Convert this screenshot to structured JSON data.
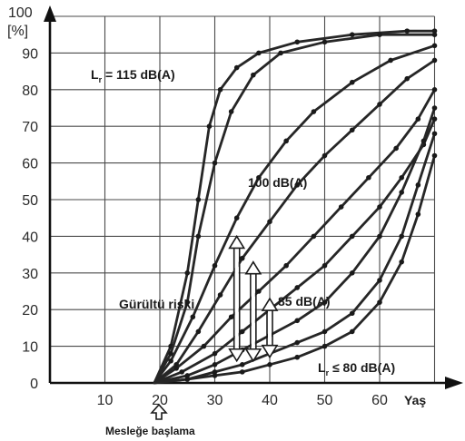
{
  "chart_data": {
    "type": "line",
    "ylabel_top": "100",
    "ylabel_unit": "[%]",
    "xlabel": "Yaş",
    "xlim": [
      0,
      70
    ],
    "ylim": [
      0,
      100
    ],
    "xticks": [
      "10",
      "20",
      "30",
      "40",
      "50",
      "60"
    ],
    "yticks": [
      "0",
      "10",
      "20",
      "30",
      "40",
      "50",
      "60",
      "70",
      "80",
      "90"
    ],
    "grid": true,
    "start_age": 19,
    "start_label": "Mesleğe başlama",
    "annotations": {
      "l115_prefix": "L",
      "l115_sub": "r",
      "l115_text": " = 115 dB(A)",
      "l100": "100 dB(A)",
      "l85": "85 dB(A)",
      "l80_prefix": "L",
      "l80_sub": "r",
      "l80_text": " ≤ 80 dB(A)",
      "risk": "Gürültü riski"
    },
    "series": [
      {
        "values": [
          [
            19,
            0
          ],
          [
            22,
            10
          ],
          [
            25,
            30
          ],
          [
            27,
            50
          ],
          [
            29,
            70
          ],
          [
            31,
            80
          ],
          [
            34,
            86
          ],
          [
            38,
            90
          ],
          [
            45,
            93
          ],
          [
            55,
            95
          ],
          [
            65,
            96
          ],
          [
            70,
            96
          ]
        ]
      },
      {
        "values": [
          [
            19,
            0
          ],
          [
            22,
            8
          ],
          [
            25,
            22
          ],
          [
            27,
            40
          ],
          [
            30,
            60
          ],
          [
            33,
            74
          ],
          [
            37,
            84
          ],
          [
            42,
            90
          ],
          [
            50,
            93
          ],
          [
            60,
            95
          ],
          [
            70,
            95
          ]
        ]
      },
      {
        "values": [
          [
            19,
            0
          ],
          [
            22,
            6
          ],
          [
            26,
            18
          ],
          [
            30,
            32
          ],
          [
            34,
            45
          ],
          [
            38,
            56
          ],
          [
            43,
            66
          ],
          [
            48,
            74
          ],
          [
            55,
            82
          ],
          [
            62,
            88
          ],
          [
            70,
            92
          ]
        ]
      },
      {
        "values": [
          [
            19,
            0
          ],
          [
            23,
            5
          ],
          [
            27,
            14
          ],
          [
            31,
            24
          ],
          [
            35,
            34
          ],
          [
            40,
            44
          ],
          [
            45,
            54
          ],
          [
            50,
            62
          ],
          [
            55,
            69
          ],
          [
            60,
            76
          ],
          [
            65,
            83
          ],
          [
            70,
            88
          ]
        ]
      },
      {
        "values": [
          [
            19,
            0
          ],
          [
            23,
            4
          ],
          [
            28,
            10
          ],
          [
            33,
            18
          ],
          [
            38,
            25
          ],
          [
            43,
            32
          ],
          [
            48,
            40
          ],
          [
            53,
            48
          ],
          [
            58,
            56
          ],
          [
            63,
            64
          ],
          [
            67,
            72
          ],
          [
            70,
            80
          ]
        ]
      },
      {
        "values": [
          [
            19,
            0
          ],
          [
            24,
            3
          ],
          [
            30,
            8
          ],
          [
            35,
            14
          ],
          [
            40,
            20
          ],
          [
            45,
            26
          ],
          [
            50,
            32
          ],
          [
            55,
            40
          ],
          [
            60,
            48
          ],
          [
            64,
            56
          ],
          [
            68,
            65
          ],
          [
            70,
            72
          ]
        ]
      },
      {
        "values": [
          [
            19,
            0
          ],
          [
            25,
            2
          ],
          [
            30,
            5
          ],
          [
            35,
            9
          ],
          [
            40,
            13
          ],
          [
            45,
            17
          ],
          [
            50,
            22
          ],
          [
            55,
            30
          ],
          [
            60,
            40
          ],
          [
            64,
            52
          ],
          [
            68,
            66
          ],
          [
            70,
            75
          ]
        ]
      },
      {
        "values": [
          [
            19,
            0
          ],
          [
            25,
            1
          ],
          [
            30,
            3
          ],
          [
            35,
            5
          ],
          [
            40,
            8
          ],
          [
            45,
            11
          ],
          [
            50,
            14
          ],
          [
            55,
            19
          ],
          [
            60,
            28
          ],
          [
            64,
            40
          ],
          [
            67,
            54
          ],
          [
            70,
            68
          ]
        ]
      },
      {
        "values": [
          [
            19,
            0
          ],
          [
            25,
            1
          ],
          [
            30,
            2
          ],
          [
            35,
            3
          ],
          [
            40,
            5
          ],
          [
            45,
            7
          ],
          [
            50,
            10
          ],
          [
            55,
            14
          ],
          [
            60,
            22
          ],
          [
            64,
            33
          ],
          [
            67,
            46
          ],
          [
            70,
            62
          ]
        ]
      }
    ],
    "arrows": [
      {
        "x": 34,
        "bottom": 6,
        "top": 40
      },
      {
        "x": 37,
        "bottom": 6,
        "top": 33
      },
      {
        "x": 40,
        "bottom": 7,
        "top": 23
      }
    ]
  }
}
